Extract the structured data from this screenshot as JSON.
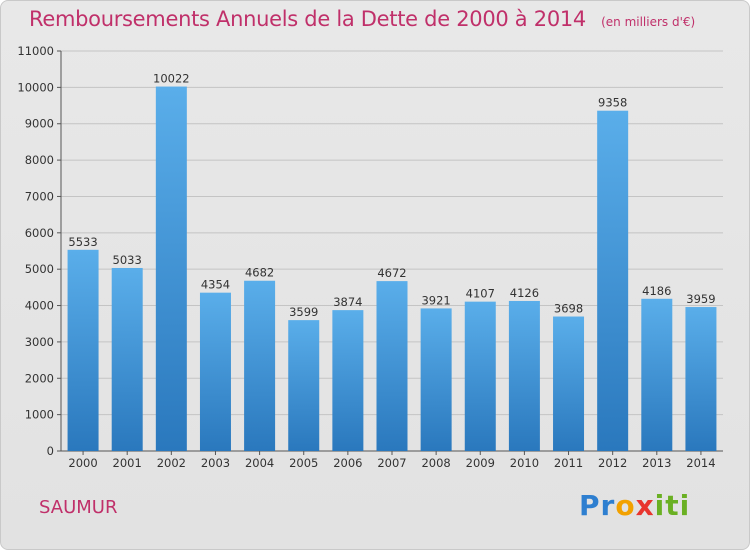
{
  "header": {
    "title": "Remboursements Annuels de la Dette de 2000 à 2014",
    "unit": "(en milliers d'€)"
  },
  "footer": {
    "city": "SAUMUR",
    "logo": "Proxiti"
  },
  "colors": {
    "accent": "#c0306a",
    "bar_top": "#5aaeea",
    "bar_bottom": "#2a78bd"
  },
  "chart_data": {
    "type": "bar",
    "title": "Remboursements Annuels de la Dette de 2000 à 2014",
    "xlabel": "",
    "ylabel": "",
    "categories": [
      "2000",
      "2001",
      "2002",
      "2003",
      "2004",
      "2005",
      "2006",
      "2007",
      "2008",
      "2009",
      "2010",
      "2011",
      "2012",
      "2013",
      "2014"
    ],
    "values": [
      5533,
      5033,
      10022,
      4354,
      4682,
      3599,
      3874,
      4672,
      3921,
      4107,
      4126,
      3698,
      9358,
      4186,
      3959
    ],
    "ylim": [
      0,
      11000
    ],
    "yticks": [
      0,
      1000,
      2000,
      3000,
      4000,
      5000,
      6000,
      7000,
      8000,
      9000,
      10000,
      11000
    ],
    "grid": true,
    "legend": "none"
  }
}
